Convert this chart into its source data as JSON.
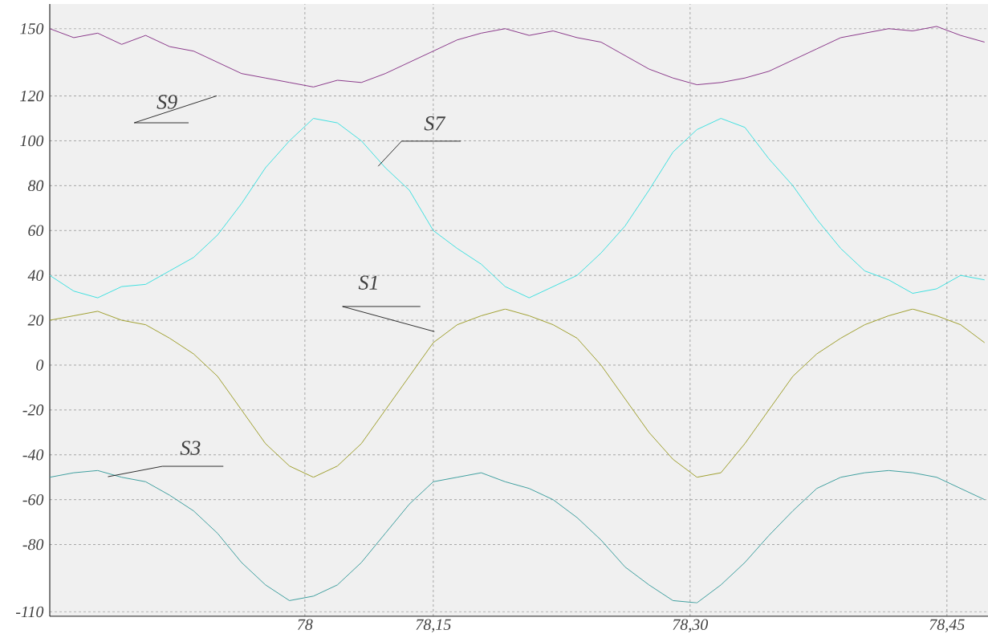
{
  "chart_data": {
    "type": "line",
    "x": [
      77.926,
      77.94,
      77.954,
      77.968,
      77.982,
      77.996,
      78.01,
      78.024,
      78.038,
      78.052,
      78.066,
      78.08,
      78.094,
      78.108,
      78.122,
      78.136,
      78.15,
      78.164,
      78.178,
      78.192,
      78.206,
      78.22,
      78.234,
      78.248,
      78.262,
      78.276,
      78.29,
      78.304,
      78.318,
      78.332,
      78.346,
      78.36,
      78.374,
      78.388,
      78.402,
      78.416,
      78.43,
      78.444,
      78.458,
      78.472
    ],
    "series": [
      {
        "name": "S9",
        "color": "#8b3a8b",
        "values": [
          150,
          146,
          148,
          143,
          147,
          142,
          140,
          135,
          130,
          128,
          126,
          124,
          127,
          126,
          130,
          135,
          140,
          145,
          148,
          150,
          147,
          149,
          146,
          144,
          138,
          132,
          128,
          125,
          126,
          128,
          131,
          136,
          141,
          146,
          148,
          150,
          149,
          151,
          147,
          144
        ]
      },
      {
        "name": "S7",
        "color": "#40e0e0",
        "values": [
          40,
          33,
          30,
          35,
          36,
          42,
          48,
          58,
          72,
          88,
          100,
          110,
          108,
          100,
          88,
          78,
          60,
          52,
          45,
          35,
          30,
          35,
          40,
          50,
          62,
          78,
          95,
          105,
          110,
          106,
          92,
          80,
          65,
          52,
          42,
          38,
          32,
          34,
          40,
          38
        ]
      },
      {
        "name": "S1",
        "color": "#a0a030",
        "values": [
          20,
          22,
          24,
          20,
          18,
          12,
          5,
          -5,
          -20,
          -35,
          -45,
          -50,
          -45,
          -35,
          -20,
          -5,
          10,
          18,
          22,
          25,
          22,
          18,
          12,
          0,
          -15,
          -30,
          -42,
          -50,
          -48,
          -35,
          -20,
          -5,
          5,
          12,
          18,
          22,
          25,
          22,
          18,
          10
        ]
      },
      {
        "name": "S3",
        "color": "#40a0a0",
        "values": [
          -50,
          -48,
          -47,
          -50,
          -52,
          -58,
          -65,
          -75,
          -88,
          -98,
          -105,
          -103,
          -98,
          -88,
          -75,
          -62,
          -52,
          -50,
          -48,
          -52,
          -55,
          -60,
          -68,
          -78,
          -90,
          -98,
          -105,
          -106,
          -98,
          -88,
          -76,
          -65,
          -55,
          -50,
          -48,
          -47,
          -48,
          -50,
          -55,
          -60
        ]
      }
    ],
    "xlim": [
      77.926,
      78.474
    ],
    "xticks": [
      {
        "value": 78.075,
        "label": "78"
      },
      {
        "value": 78.15,
        "label": "78,15"
      },
      {
        "value": 78.3,
        "label": "78,30"
      },
      {
        "value": 78.45,
        "label": "78,45"
      }
    ],
    "ylim": [
      -112,
      161
    ],
    "yticks": [
      -110,
      -80,
      -60,
      -40,
      -20,
      0,
      20,
      40,
      60,
      80,
      100,
      120,
      150
    ],
    "grid": true,
    "legend": false,
    "marker": "none",
    "line_style": "solid"
  }
}
